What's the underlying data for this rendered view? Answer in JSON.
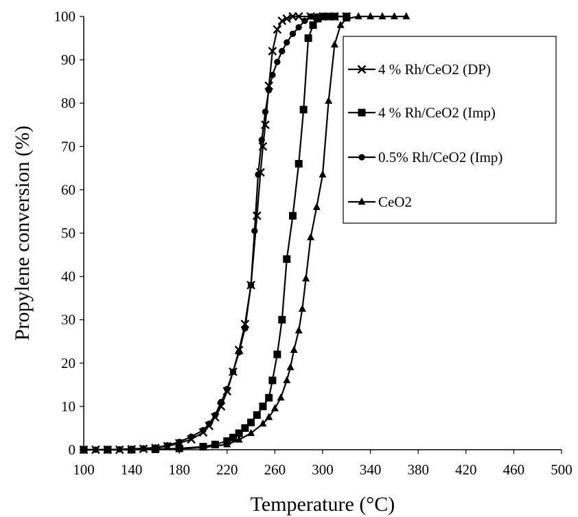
{
  "chart_data": {
    "type": "line",
    "title": "",
    "xlabel": "Temperature (°C)",
    "ylabel": "Propylene conversion (%)",
    "xlim": [
      100,
      500
    ],
    "ylim": [
      0,
      100
    ],
    "x_ticks": [
      100,
      140,
      180,
      220,
      260,
      300,
      340,
      380,
      420,
      460,
      500
    ],
    "y_ticks": [
      0,
      10,
      20,
      30,
      40,
      50,
      60,
      70,
      80,
      90,
      100
    ],
    "grid": false,
    "legend_position": "top-right",
    "series": [
      {
        "name": "4 % Rh/CeO2 (DP)",
        "marker": "x",
        "x": [
          100,
          110,
          120,
          130,
          140,
          150,
          160,
          170,
          180,
          190,
          200,
          205,
          210,
          215,
          220,
          225,
          230,
          235,
          240,
          245,
          248,
          250,
          252,
          255,
          258,
          262,
          266,
          270,
          275,
          280,
          290,
          300,
          310,
          320
        ],
        "y": [
          0,
          0,
          0,
          0,
          0.1,
          0.2,
          0.4,
          0.8,
          1.5,
          2.4,
          4,
          5.5,
          7.5,
          10,
          13.5,
          18,
          23,
          29,
          38,
          54,
          64,
          70,
          75,
          84,
          92,
          97,
          99,
          99.5,
          100,
          100,
          100,
          100,
          100,
          100
        ]
      },
      {
        "name": "4 % Rh/CeO2 (Imp)",
        "marker": "square",
        "x": [
          100,
          120,
          140,
          160,
          180,
          200,
          210,
          220,
          225,
          230,
          235,
          240,
          245,
          250,
          255,
          258,
          262,
          266,
          270,
          275,
          280,
          284,
          288,
          292,
          296,
          300,
          305,
          310,
          320
        ],
        "y": [
          0,
          0,
          0,
          0.1,
          0.3,
          0.7,
          1.2,
          2,
          2.8,
          3.8,
          5,
          6.3,
          8,
          10,
          12,
          16,
          22,
          30,
          44,
          54,
          66,
          78.5,
          95,
          98,
          99.5,
          100,
          100,
          100,
          100
        ]
      },
      {
        "name": "0.5% Rh/CeO2 (Imp)",
        "marker": "circle",
        "x": [
          100,
          110,
          120,
          130,
          140,
          150,
          160,
          170,
          180,
          190,
          200,
          205,
          210,
          215,
          220,
          225,
          230,
          235,
          240,
          243,
          246,
          249,
          252,
          255,
          258,
          262,
          266,
          270,
          275,
          280,
          285,
          290,
          295,
          300,
          310,
          320
        ],
        "y": [
          0,
          0,
          0,
          0.1,
          0.2,
          0.3,
          0.5,
          1,
          1.8,
          3,
          4.5,
          6,
          8,
          11,
          14,
          18,
          22.5,
          28,
          38,
          50.5,
          63.5,
          71.5,
          78,
          83,
          86.5,
          89.5,
          92,
          94,
          96,
          97.5,
          99,
          100,
          100,
          100,
          100,
          100
        ]
      },
      {
        "name": "CeO2",
        "marker": "triangle",
        "x": [
          100,
          120,
          140,
          160,
          180,
          200,
          220,
          230,
          240,
          250,
          255,
          260,
          265,
          270,
          273,
          276,
          280,
          283,
          286,
          290,
          295,
          300,
          305,
          310,
          315,
          320,
          330,
          340,
          350,
          360,
          370
        ],
        "y": [
          0,
          0,
          0,
          0.1,
          0.2,
          0.5,
          1.2,
          2.3,
          3.8,
          6,
          7.5,
          9.5,
          12,
          16,
          19,
          23,
          27.5,
          32.5,
          39.5,
          49,
          56,
          63.5,
          80.5,
          93.5,
          98,
          99.5,
          100,
          100,
          100,
          100,
          100
        ]
      }
    ]
  }
}
